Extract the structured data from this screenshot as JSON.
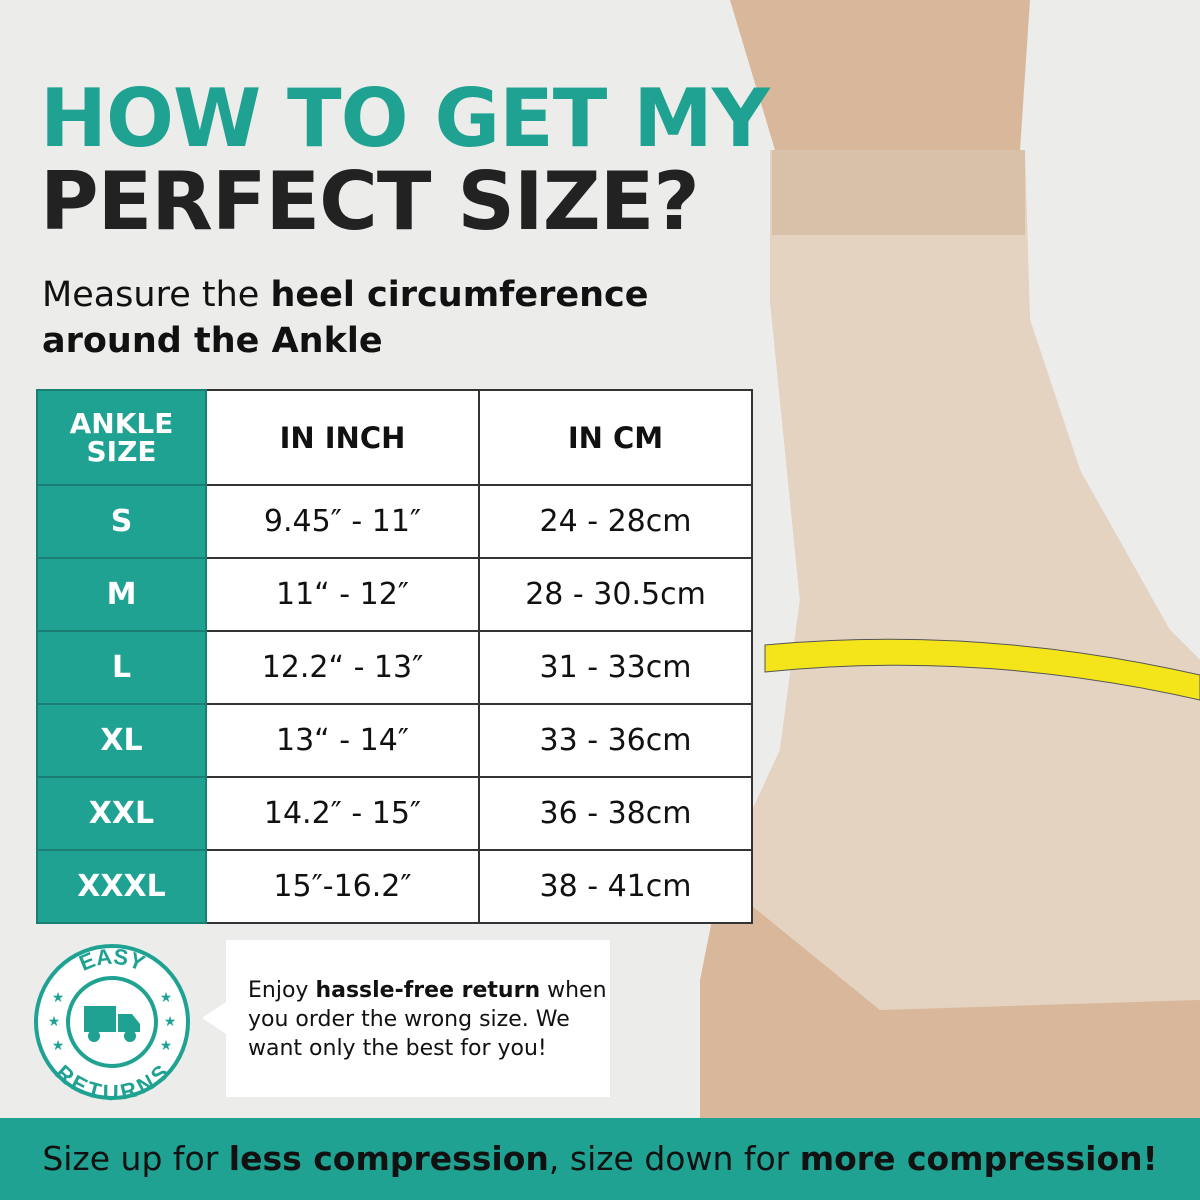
{
  "colors": {
    "teal": "#1fa292",
    "dark": "#222222"
  },
  "title": {
    "line1": "HOW TO GET MY",
    "line2": "PERFECT SIZE?"
  },
  "subtitle": {
    "part1": "Measure the ",
    "bold": "heel circumference",
    "part2": "around the Ankle"
  },
  "table": {
    "headers": [
      "ANKLE SIZE",
      "IN INCH",
      "IN CM"
    ],
    "rows": [
      [
        "S",
        "9.45″ - 11″",
        "24 - 28cm"
      ],
      [
        "M",
        "11“ - 12″",
        "28 - 30.5cm"
      ],
      [
        "L",
        "12.2“ - 13″",
        "31 - 33cm"
      ],
      [
        "XL",
        "13“ - 14″",
        "33 - 36cm"
      ],
      [
        "XXL",
        "14.2″ - 15″",
        "36 - 38cm"
      ],
      [
        "XXXL",
        "15″-16.2″",
        "38 - 41cm"
      ]
    ]
  },
  "badge": {
    "top": "EASY",
    "bottom": "RETURNS",
    "icon": "truck-icon"
  },
  "callout": {
    "part1": "Enjoy ",
    "bold": "hassle-free return",
    "part2": " when you order the wrong size. We want only the best for you!"
  },
  "banner": {
    "part1": "Size up for ",
    "bold1": "less compression",
    "part2": ", size down for ",
    "bold2": "more compression!"
  }
}
